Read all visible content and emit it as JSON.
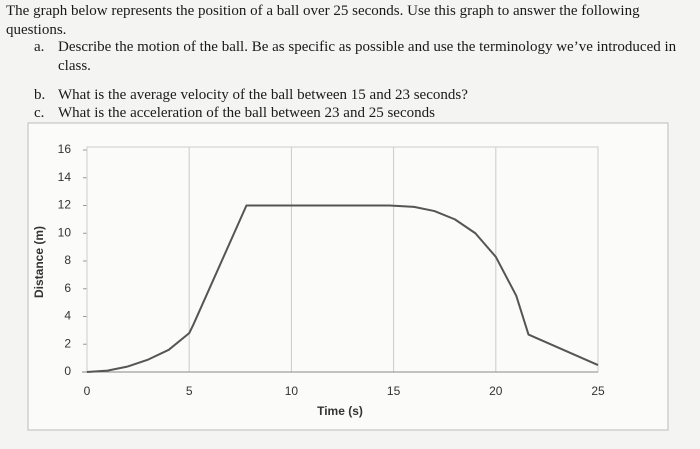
{
  "intro": "The graph below represents the position of a ball over 25 seconds.  Use this graph to answer the following questions.",
  "questions": [
    {
      "label": "a.",
      "text": "Describe the motion of the ball.  Be as specific as possible and use the terminology we’ve introduced in class."
    },
    {
      "label": "b.",
      "text": "What is the average velocity of the ball between 15 and 23 seconds?"
    },
    {
      "label": "c.",
      "text": "What is the acceleration of the ball between 23 and 25 seconds"
    }
  ],
  "chart_data": {
    "type": "line",
    "x_label": "Time (s)",
    "y_label": "Distance (m)",
    "x": [
      0,
      1,
      2,
      3,
      4,
      5,
      5.2,
      7.8,
      14.8,
      16,
      17,
      18,
      19,
      20,
      21,
      21.6,
      25
    ],
    "series": [
      {
        "color": "#555555",
        "values": [
          0,
          0.1,
          0.4,
          0.9,
          1.6,
          2.8,
          3.4,
          12,
          12,
          11.9,
          11.6,
          11,
          10,
          8.3,
          5.5,
          2.7,
          0.5
        ]
      }
    ],
    "xlim": [
      0,
      25
    ],
    "xticks": [
      0,
      5,
      10,
      15,
      20,
      25
    ],
    "ylim": [
      0,
      16
    ],
    "yticks": [
      0,
      2,
      4,
      6,
      8,
      10,
      12,
      14,
      16
    ],
    "grid": "x"
  }
}
